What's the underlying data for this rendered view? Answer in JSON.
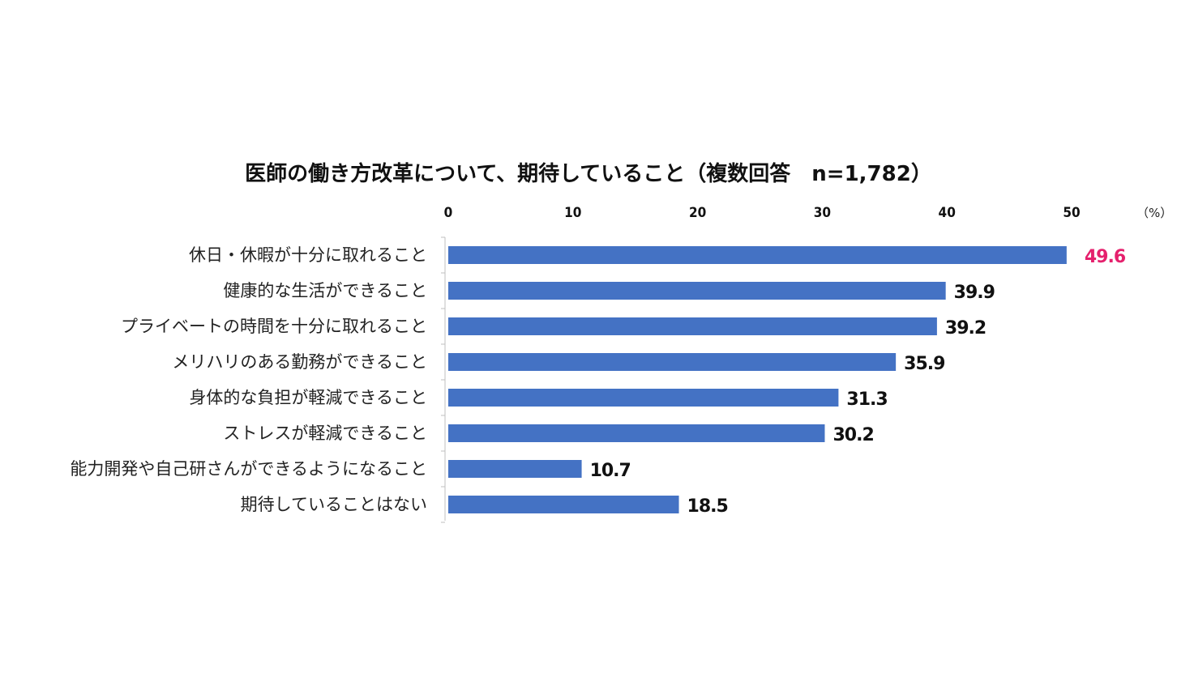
{
  "chart_data": {
    "type": "bar",
    "orientation": "horizontal",
    "title": "医師の働き方改革について、期待していること（複数回答　n=1,782）",
    "unit": "（%）",
    "xlim": [
      0,
      50
    ],
    "ticks": [
      "0",
      "10",
      "20",
      "30",
      "40",
      "50"
    ],
    "grid": false,
    "categories": [
      "休日・休暇が十分に取れること",
      "健康的な生活ができること",
      "プライベートの時間を十分に取れること",
      "メリハリのある勤務ができること",
      "身体的な負担が軽減できること",
      "ストレスが軽減できること",
      "能力開発や自己研さんができるようになること",
      "期待していることはない"
    ],
    "values": [
      49.6,
      39.9,
      39.2,
      35.9,
      31.3,
      30.2,
      10.7,
      18.5
    ],
    "value_labels": [
      "49.6",
      "39.9",
      "39.2",
      "35.9",
      "31.3",
      "30.2",
      "10.7",
      "18.5"
    ],
    "bar_color": "#4472c4",
    "highlight_index": 0,
    "highlight_color": "#e5206d"
  }
}
